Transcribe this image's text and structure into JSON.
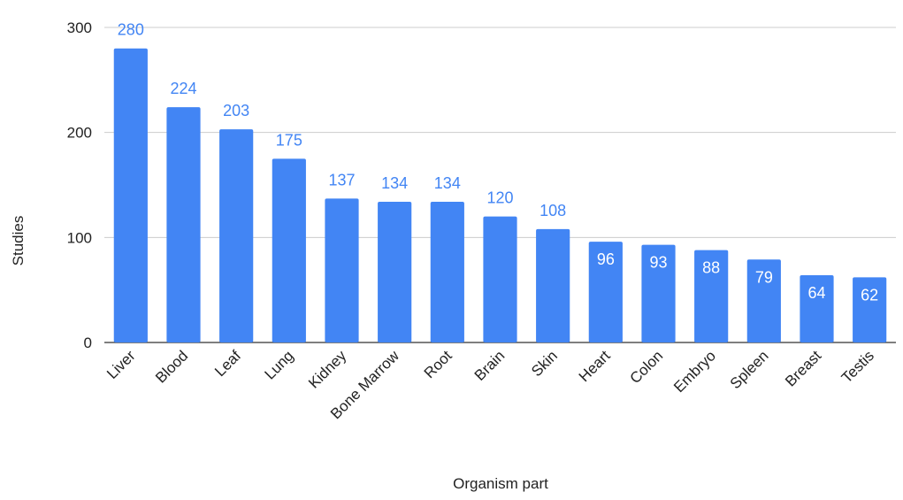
{
  "chart_data": {
    "type": "bar",
    "categories": [
      "Liver",
      "Blood",
      "Leaf",
      "Lung",
      "Kidney",
      "Bone Marrow",
      "Root",
      "Brain",
      "Skin",
      "Heart",
      "Colon",
      "Embryo",
      "Spleen",
      "Breast",
      "Testis"
    ],
    "values": [
      280,
      224,
      203,
      175,
      137,
      134,
      134,
      120,
      108,
      96,
      93,
      88,
      79,
      64,
      62
    ],
    "xlabel": "Organism part",
    "ylabel": "Studies",
    "ylim": [
      0,
      300
    ],
    "yticks": [
      0,
      100,
      200,
      300
    ],
    "grid": true,
    "legend": "none",
    "colors": {
      "bar": "#4285f4",
      "label_outside": "#4285f4",
      "label_inside": "#ffffff"
    }
  }
}
